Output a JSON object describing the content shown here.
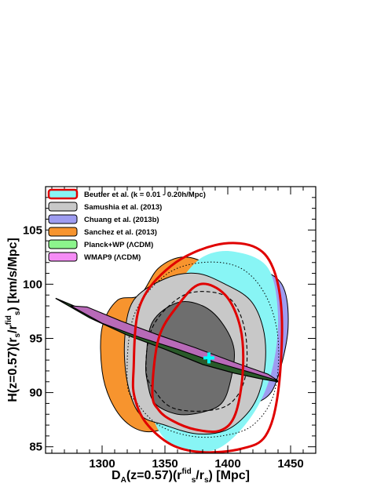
{
  "chart_data": {
    "type": "contour",
    "xlim": [
      1255,
      1470
    ],
    "ylim": [
      84.4,
      109
    ],
    "xticks": [
      1300,
      1350,
      1400,
      1450
    ],
    "yticks": [
      85,
      90,
      95,
      100,
      105
    ],
    "x_tick_labels": [
      "1300",
      "1350",
      "1400",
      "1450"
    ],
    "y_tick_labels": [
      "85",
      "90",
      "95",
      "100",
      "105"
    ],
    "xlabel": {
      "main": "D",
      "sub1": "A",
      "mid": "(z=0.57)(r",
      "sup1": "fid",
      "sub2": "s",
      "mid2": "/r",
      "sub3": "s",
      "end": ") [Mpc]"
    },
    "ylabel": {
      "main": "H(z=0.57)(r",
      "sub1": "s",
      "mid": "/r",
      "sup1": "fid",
      "sub2": "s",
      "end": ") [km/s/Mpc]"
    },
    "legend_position": "top-left",
    "marker": {
      "x": 1385,
      "y": 93.2,
      "color": "#00ffff",
      "symbol": "+"
    },
    "series": [
      {
        "name": "Beutler et al. (k = 0.01 - 0.20h/Mpc)",
        "fill": "#88f5f5",
        "edge": "#e00000"
      },
      {
        "name": "Samushia et al. (2013)",
        "fill": "#c8c8c8",
        "edge": "#000000"
      },
      {
        "name": "Chuang et al. (2013b)",
        "fill": "#9e9cf0",
        "edge": "#000000"
      },
      {
        "name": "Sanchez et al. (2013)",
        "fill": "#f7942e",
        "edge": "#000000"
      },
      {
        "name": "Planck+WP (ΛCDM)",
        "fill": "#8cf58c",
        "edge": "#000000"
      },
      {
        "name": "WMAP9 (ΛCDM)",
        "fill": "#f58cf5",
        "edge": "#000000"
      }
    ],
    "contours": {
      "sanchez_outer": [
        [
          1330,
          99
        ],
        [
          1345,
          101.5
        ],
        [
          1365,
          102.5
        ],
        [
          1385,
          101.5
        ],
        [
          1395,
          98
        ],
        [
          1390,
          94
        ],
        [
          1375,
          91
        ],
        [
          1360,
          87.5
        ],
        [
          1340,
          86.4
        ],
        [
          1322,
          87
        ],
        [
          1308,
          89
        ],
        [
          1300,
          92
        ],
        [
          1300,
          96
        ],
        [
          1312,
          98.5
        ]
      ],
      "sanchez_inner": [
        [
          1332,
          97.5
        ],
        [
          1345,
          98
        ],
        [
          1352,
          94
        ],
        [
          1345,
          91
        ],
        [
          1336,
          90
        ],
        [
          1330,
          93
        ]
      ],
      "chuang_outer": [
        [
          1380,
          99
        ],
        [
          1398,
          101
        ],
        [
          1420,
          101.5
        ],
        [
          1443,
          100
        ],
        [
          1448,
          96
        ],
        [
          1440,
          91.5
        ],
        [
          1430,
          89.5
        ],
        [
          1410,
          89
        ],
        [
          1395,
          91
        ],
        [
          1380,
          93
        ]
      ],
      "beutler_fill": [
        [
          1360,
          100
        ],
        [
          1380,
          102.5
        ],
        [
          1405,
          103
        ],
        [
          1432,
          101.5
        ],
        [
          1440,
          97
        ],
        [
          1435,
          92
        ],
        [
          1420,
          88
        ],
        [
          1395,
          85
        ],
        [
          1370,
          84.6
        ],
        [
          1352,
          85.5
        ],
        [
          1340,
          88
        ],
        [
          1337,
          93
        ],
        [
          1343,
          97
        ]
      ],
      "samushia_outer": [
        [
          1318,
          95
        ],
        [
          1325,
          98.5
        ],
        [
          1350,
          100.5
        ],
        [
          1375,
          101
        ],
        [
          1398,
          100
        ],
        [
          1418,
          98.5
        ],
        [
          1428,
          96
        ],
        [
          1430,
          93
        ],
        [
          1425,
          90
        ],
        [
          1415,
          88
        ],
        [
          1398,
          86.5
        ],
        [
          1375,
          86.2
        ],
        [
          1350,
          87
        ],
        [
          1330,
          88
        ],
        [
          1320,
          91
        ]
      ],
      "samushia_inner": [
        [
          1335,
          93
        ],
        [
          1340,
          96.5
        ],
        [
          1360,
          98.3
        ],
        [
          1380,
          98
        ],
        [
          1395,
          96.5
        ],
        [
          1405,
          94
        ],
        [
          1402,
          91
        ],
        [
          1395,
          89
        ],
        [
          1380,
          88.2
        ],
        [
          1360,
          88
        ],
        [
          1342,
          89
        ],
        [
          1336,
          91
        ]
      ],
      "beutler_1sigma": [
        [
          1340,
          90
        ],
        [
          1345,
          95
        ],
        [
          1360,
          98
        ],
        [
          1378,
          100
        ],
        [
          1398,
          99
        ],
        [
          1410,
          96
        ],
        [
          1412,
          92
        ],
        [
          1406,
          88
        ],
        [
          1394,
          86.5
        ],
        [
          1374,
          86.6
        ],
        [
          1356,
          87.4
        ],
        [
          1345,
          88.4
        ]
      ],
      "beutler_2sigma": [
        [
          1325,
          92
        ],
        [
          1330,
          98
        ],
        [
          1355,
          101.7
        ],
        [
          1390,
          103.6
        ],
        [
          1420,
          103.5
        ],
        [
          1436,
          101.5
        ],
        [
          1443,
          97
        ],
        [
          1440,
          90
        ],
        [
          1430,
          86
        ],
        [
          1410,
          84.8
        ],
        [
          1380,
          84.5
        ],
        [
          1355,
          85.2
        ],
        [
          1335,
          87.2
        ],
        [
          1326,
          89.5
        ]
      ],
      "chuang_dashed": [
        [
          1335,
          92
        ],
        [
          1340,
          96
        ],
        [
          1362,
          98.8
        ],
        [
          1385,
          99.3
        ],
        [
          1404,
          98.4
        ],
        [
          1414,
          95.5
        ],
        [
          1414,
          91.5
        ],
        [
          1402,
          89
        ],
        [
          1380,
          88.3
        ],
        [
          1356,
          88.6
        ],
        [
          1343,
          90
        ]
      ],
      "samushia_dotted": [
        [
          1320,
          91
        ],
        [
          1325,
          97
        ],
        [
          1350,
          100.8
        ],
        [
          1380,
          102
        ],
        [
          1410,
          101.5
        ],
        [
          1430,
          99
        ],
        [
          1440,
          95
        ],
        [
          1437,
          90
        ],
        [
          1420,
          87
        ],
        [
          1395,
          86
        ],
        [
          1370,
          86
        ],
        [
          1345,
          87
        ],
        [
          1328,
          89
        ]
      ],
      "planck_band": [
        [
          1263,
          98.7
        ],
        [
          1290,
          96.9
        ],
        [
          1320,
          95.3
        ],
        [
          1350,
          94
        ],
        [
          1380,
          92.6
        ],
        [
          1405,
          91.8
        ],
        [
          1425,
          91.3
        ],
        [
          1440,
          91
        ],
        [
          1434,
          91.5
        ],
        [
          1410,
          92.5
        ],
        [
          1380,
          93.6
        ],
        [
          1350,
          94.6
        ],
        [
          1320,
          95.8
        ],
        [
          1290,
          97.4
        ]
      ],
      "wmap_band": [
        [
          1275,
          98
        ],
        [
          1300,
          96.4
        ],
        [
          1330,
          95.1
        ],
        [
          1360,
          94
        ],
        [
          1390,
          92.8
        ],
        [
          1420,
          91.8
        ],
        [
          1440,
          91.1
        ],
        [
          1432,
          91.7
        ],
        [
          1405,
          92.8
        ],
        [
          1375,
          94.1
        ],
        [
          1345,
          95.3
        ],
        [
          1315,
          96.6
        ],
        [
          1288,
          97.9
        ]
      ]
    }
  }
}
